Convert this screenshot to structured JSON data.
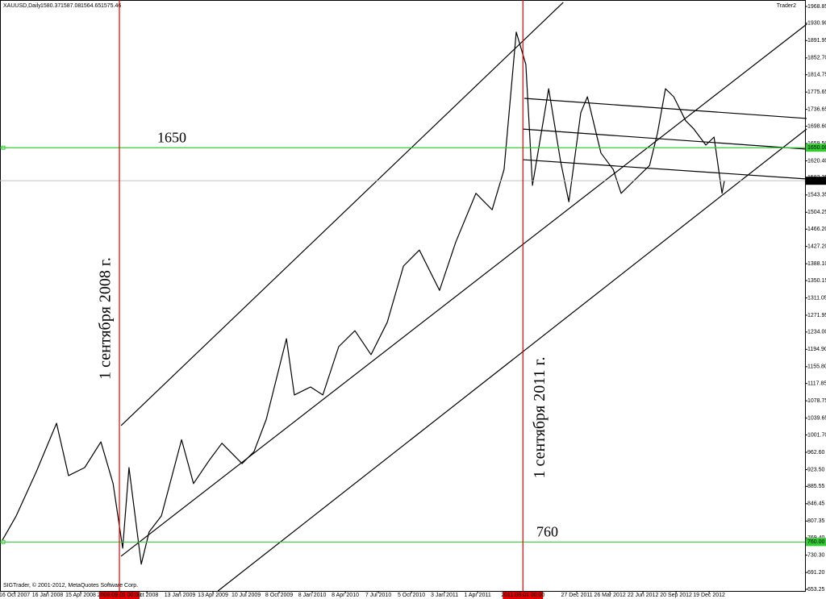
{
  "chart_data": {
    "type": "line",
    "symbol": "XAUUSD,Daily",
    "ohlc": [
      1580.37,
      1587.08,
      1564.65,
      1575.46
    ],
    "window": "Trader2",
    "copyright": "SIGTrader, © 2001-2012, MetaQuotes Software Corp.",
    "xlim": [
      -0.44,
      23.9
    ],
    "ylim": [
      649.6,
      1983.4
    ],
    "xticks": [
      {
        "value": 0,
        "label": "16 Oct 2007"
      },
      {
        "value": 1,
        "label": "16 Jan 2008"
      },
      {
        "value": 2,
        "label": "15 Apr 2008"
      },
      {
        "value": 4,
        "label": "Oct 2008"
      },
      {
        "value": 5,
        "label": "13 Jan 2009"
      },
      {
        "value": 6,
        "label": "13 Apr 2009"
      },
      {
        "value": 7,
        "label": "10 Jul 2009"
      },
      {
        "value": 8,
        "label": "8 Oct 2009"
      },
      {
        "value": 9,
        "label": "8 Jan 2010"
      },
      {
        "value": 10,
        "label": "8 Apr 2010"
      },
      {
        "value": 11,
        "label": "7 Jul 2010"
      },
      {
        "value": 12,
        "label": "5 Oct 2010"
      },
      {
        "value": 13,
        "label": "3 Jan 2011"
      },
      {
        "value": 14,
        "label": "1 Apr 2011"
      },
      {
        "value": 17,
        "label": "27 Dec 2011"
      },
      {
        "value": 18,
        "label": "26 Mar 2012"
      },
      {
        "value": 19,
        "label": "22 Jun 2012"
      },
      {
        "value": 20,
        "label": "20 Sep 2012"
      },
      {
        "value": 21,
        "label": "19 Dec 2012"
      }
    ],
    "yticks": [
      1968.85,
      {
        "value": 1930.9,
        "label": "1930.90"
      },
      1891.95,
      {
        "value": 1852.7,
        "label": "1852.70"
      },
      1814.75,
      1775.65,
      1736.65,
      {
        "value": 1698.6,
        "label": "1698.60"
      },
      {
        "value": 1659.5,
        "label": "1659.50"
      },
      {
        "value": 1620.4,
        "label": "1620.40"
      },
      1582.35,
      1543.35,
      1504.25,
      {
        "value": 1466.2,
        "label": "1466.20"
      },
      {
        "value": 1427.2,
        "label": "1427.20"
      },
      {
        "value": 1388.1,
        "label": "1388.10"
      },
      1350.15,
      1311.05,
      1271.95,
      {
        "value": 1234,
        "label": "1234.00"
      },
      {
        "value": 1194.9,
        "label": "1194.90"
      },
      {
        "value": 1155.8,
        "label": "1155.80"
      },
      1117.85,
      1078.75,
      1039.65,
      {
        "value": 1001.7,
        "label": "1001.70"
      },
      {
        "value": 962.6,
        "label": "962.60"
      },
      {
        "value": 923.5,
        "label": "923.50"
      },
      885.55,
      846.45,
      807.35,
      {
        "value": 769.4,
        "label": "769.40"
      },
      {
        "value": 730.3,
        "label": "730.30"
      },
      {
        "value": 691.2,
        "label": "691.20"
      },
      653.25
    ],
    "series": [
      {
        "color": "#000000",
        "x": [
          -0.37,
          0.05,
          0.66,
          1.27,
          1.63,
          2.12,
          2.61,
          2.98,
          3.27,
          3.46,
          3.83,
          4.07,
          4.44,
          5.05,
          5.41,
          5.9,
          6.27,
          6.88,
          7.24,
          7.61,
          8.22,
          8.46,
          8.95,
          9.32,
          9.8,
          10.29,
          10.78,
          11.27,
          11.76,
          12.24,
          12.85,
          13.34,
          13.95,
          14.44,
          14.8,
          15.17,
          15.46,
          15.66,
          16.15,
          16.51,
          16.76,
          17.12,
          17.32,
          17.73,
          18.1,
          18.34,
          18.83,
          19.2,
          19.44,
          19.68,
          19.93,
          20.29,
          20.54,
          20.9,
          21.15,
          21.39,
          21.46
        ],
        "values": [
          764,
          819,
          919,
          1028,
          910,
          928,
          986,
          892,
          746,
          928,
          710,
          783,
          819,
          991,
          892,
          946,
          983,
          937,
          964,
          1037,
          1219,
          1092,
          1110,
          1092,
          1201,
          1237,
          1183,
          1256,
          1383,
          1419,
          1328,
          1437,
          1547,
          1510,
          1601,
          1911,
          1838,
          1565,
          1783,
          1619,
          1528,
          1729,
          1765,
          1638,
          1601,
          1547,
          1583,
          1610,
          1683,
          1783,
          1765,
          1711,
          1692,
          1656,
          1674,
          1547,
          1575
        ]
      }
    ],
    "last_price": 1575.46,
    "hlines": {
      "color": "#33cc33",
      "values": [
        1650,
        760
      ],
      "value_labels": [
        "1650.00",
        "760.00"
      ]
    },
    "vlines": {
      "color": "#e00000",
      "x": [
        3.17,
        15.37
      ],
      "labels": [
        "1 сентября 2008 г.",
        "1 сентября 2011 г."
      ],
      "x_labels": [
        "2008.09.01 00:00",
        "2011.09.01 00:00"
      ]
    },
    "trendlines": [
      {
        "x": [
          3.22,
          16.59
        ],
        "values": [
          1022.7,
          1978
        ]
      },
      {
        "x": [
          3.22,
          23.95
        ],
        "values": [
          728,
          1928.8
        ]
      },
      {
        "x": [
          6.15,
          23.95
        ],
        "values": [
          649.6,
          1692.3
        ]
      },
      {
        "x": [
          15.41,
          23.95
        ],
        "values": [
          1761.4,
          1716
        ]
      },
      {
        "x": [
          15.37,
          23.95
        ],
        "values": [
          1692,
          1646.8
        ]
      },
      {
        "x": [
          15.37,
          23.95
        ],
        "values": [
          1623,
          1579.5
        ]
      }
    ]
  }
}
